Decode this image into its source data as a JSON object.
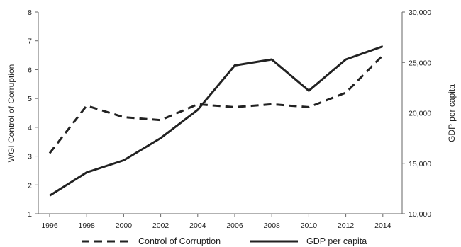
{
  "chart_data": {
    "type": "line",
    "categories": [
      "1996",
      "1998",
      "2000",
      "2002",
      "2004",
      "2006",
      "2008",
      "2010",
      "2012",
      "2014"
    ],
    "series": [
      {
        "name": "Control of Corruption",
        "axis": "left",
        "style": "dashed",
        "values": [
          3.1,
          4.75,
          4.35,
          4.25,
          4.8,
          4.7,
          4.8,
          4.7,
          5.2,
          6.5
        ]
      },
      {
        "name": "GDP per capita",
        "axis": "right",
        "style": "solid",
        "values": [
          11800,
          14100,
          15300,
          17500,
          20300,
          24700,
          25300,
          22200,
          25300,
          26600
        ]
      }
    ],
    "y_left": {
      "label": "WGI Control of Corruption",
      "lim": [
        1,
        8
      ],
      "ticks": [
        "1",
        "2",
        "3",
        "4",
        "5",
        "6",
        "7",
        "8"
      ]
    },
    "y_right": {
      "label": "GDP per capita",
      "lim": [
        10000,
        30000
      ],
      "ticks": [
        "10,000",
        "15,000",
        "20,000",
        "25,000",
        "30,000"
      ]
    },
    "xlabel": "",
    "grid": false,
    "legend_position": "bottom",
    "color": "#222222"
  }
}
